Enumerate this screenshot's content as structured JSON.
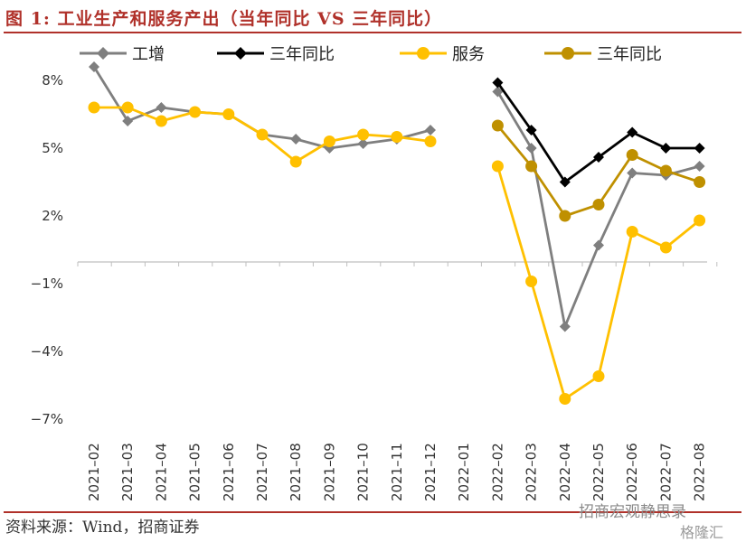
{
  "title": "图 1:  工业生产和服务产出（当年同比 VS 三年同比）",
  "source": "资料来源：Wind，招商证券",
  "watermark": "招商宏观静思录",
  "watermark_sub": "格隆汇",
  "chart_data": {
    "type": "line",
    "categories": [
      "2021-02",
      "2021-03",
      "2021-04",
      "2021-05",
      "2021-06",
      "2021-07",
      "2021-08",
      "2021-09",
      "2021-10",
      "2021-11",
      "2021-12",
      "2022-01",
      "2022-02",
      "2022-03",
      "2022-04",
      "2022-05",
      "2022-06",
      "2022-07",
      "2022-08"
    ],
    "y_ticks": [
      "8%",
      "5%",
      "2%",
      "-1%",
      "-4%",
      "-7%"
    ],
    "ylim": [
      -7,
      8.5
    ],
    "legend_position": "top",
    "series": [
      {
        "name": "工增",
        "color": "#7f7f7f",
        "marker": "diamond",
        "values": [
          8.6,
          6.2,
          6.8,
          6.6,
          6.5,
          5.6,
          5.4,
          5.0,
          5.2,
          5.4,
          5.8,
          null,
          7.5,
          5.0,
          -2.9,
          0.7,
          3.9,
          3.8,
          4.2
        ]
      },
      {
        "name": "三年同比",
        "color": "#000000",
        "marker": "diamond",
        "values": [
          null,
          null,
          null,
          null,
          null,
          null,
          null,
          null,
          null,
          null,
          null,
          null,
          7.9,
          5.8,
          3.5,
          4.6,
          5.7,
          5.0,
          5.0
        ]
      },
      {
        "name": "服务",
        "color": "#ffc000",
        "marker": "circle",
        "values": [
          6.8,
          6.8,
          6.2,
          6.6,
          6.5,
          5.6,
          4.4,
          5.3,
          5.6,
          5.5,
          5.3,
          null,
          4.2,
          -0.9,
          -6.1,
          -5.1,
          1.3,
          0.6,
          1.8
        ]
      },
      {
        "name": "三年同比",
        "color": "#bf9000",
        "marker": "circle",
        "values": [
          null,
          null,
          null,
          null,
          null,
          null,
          null,
          null,
          null,
          null,
          null,
          null,
          6.0,
          4.2,
          2.0,
          2.5,
          4.7,
          4.0,
          3.5
        ]
      }
    ]
  }
}
